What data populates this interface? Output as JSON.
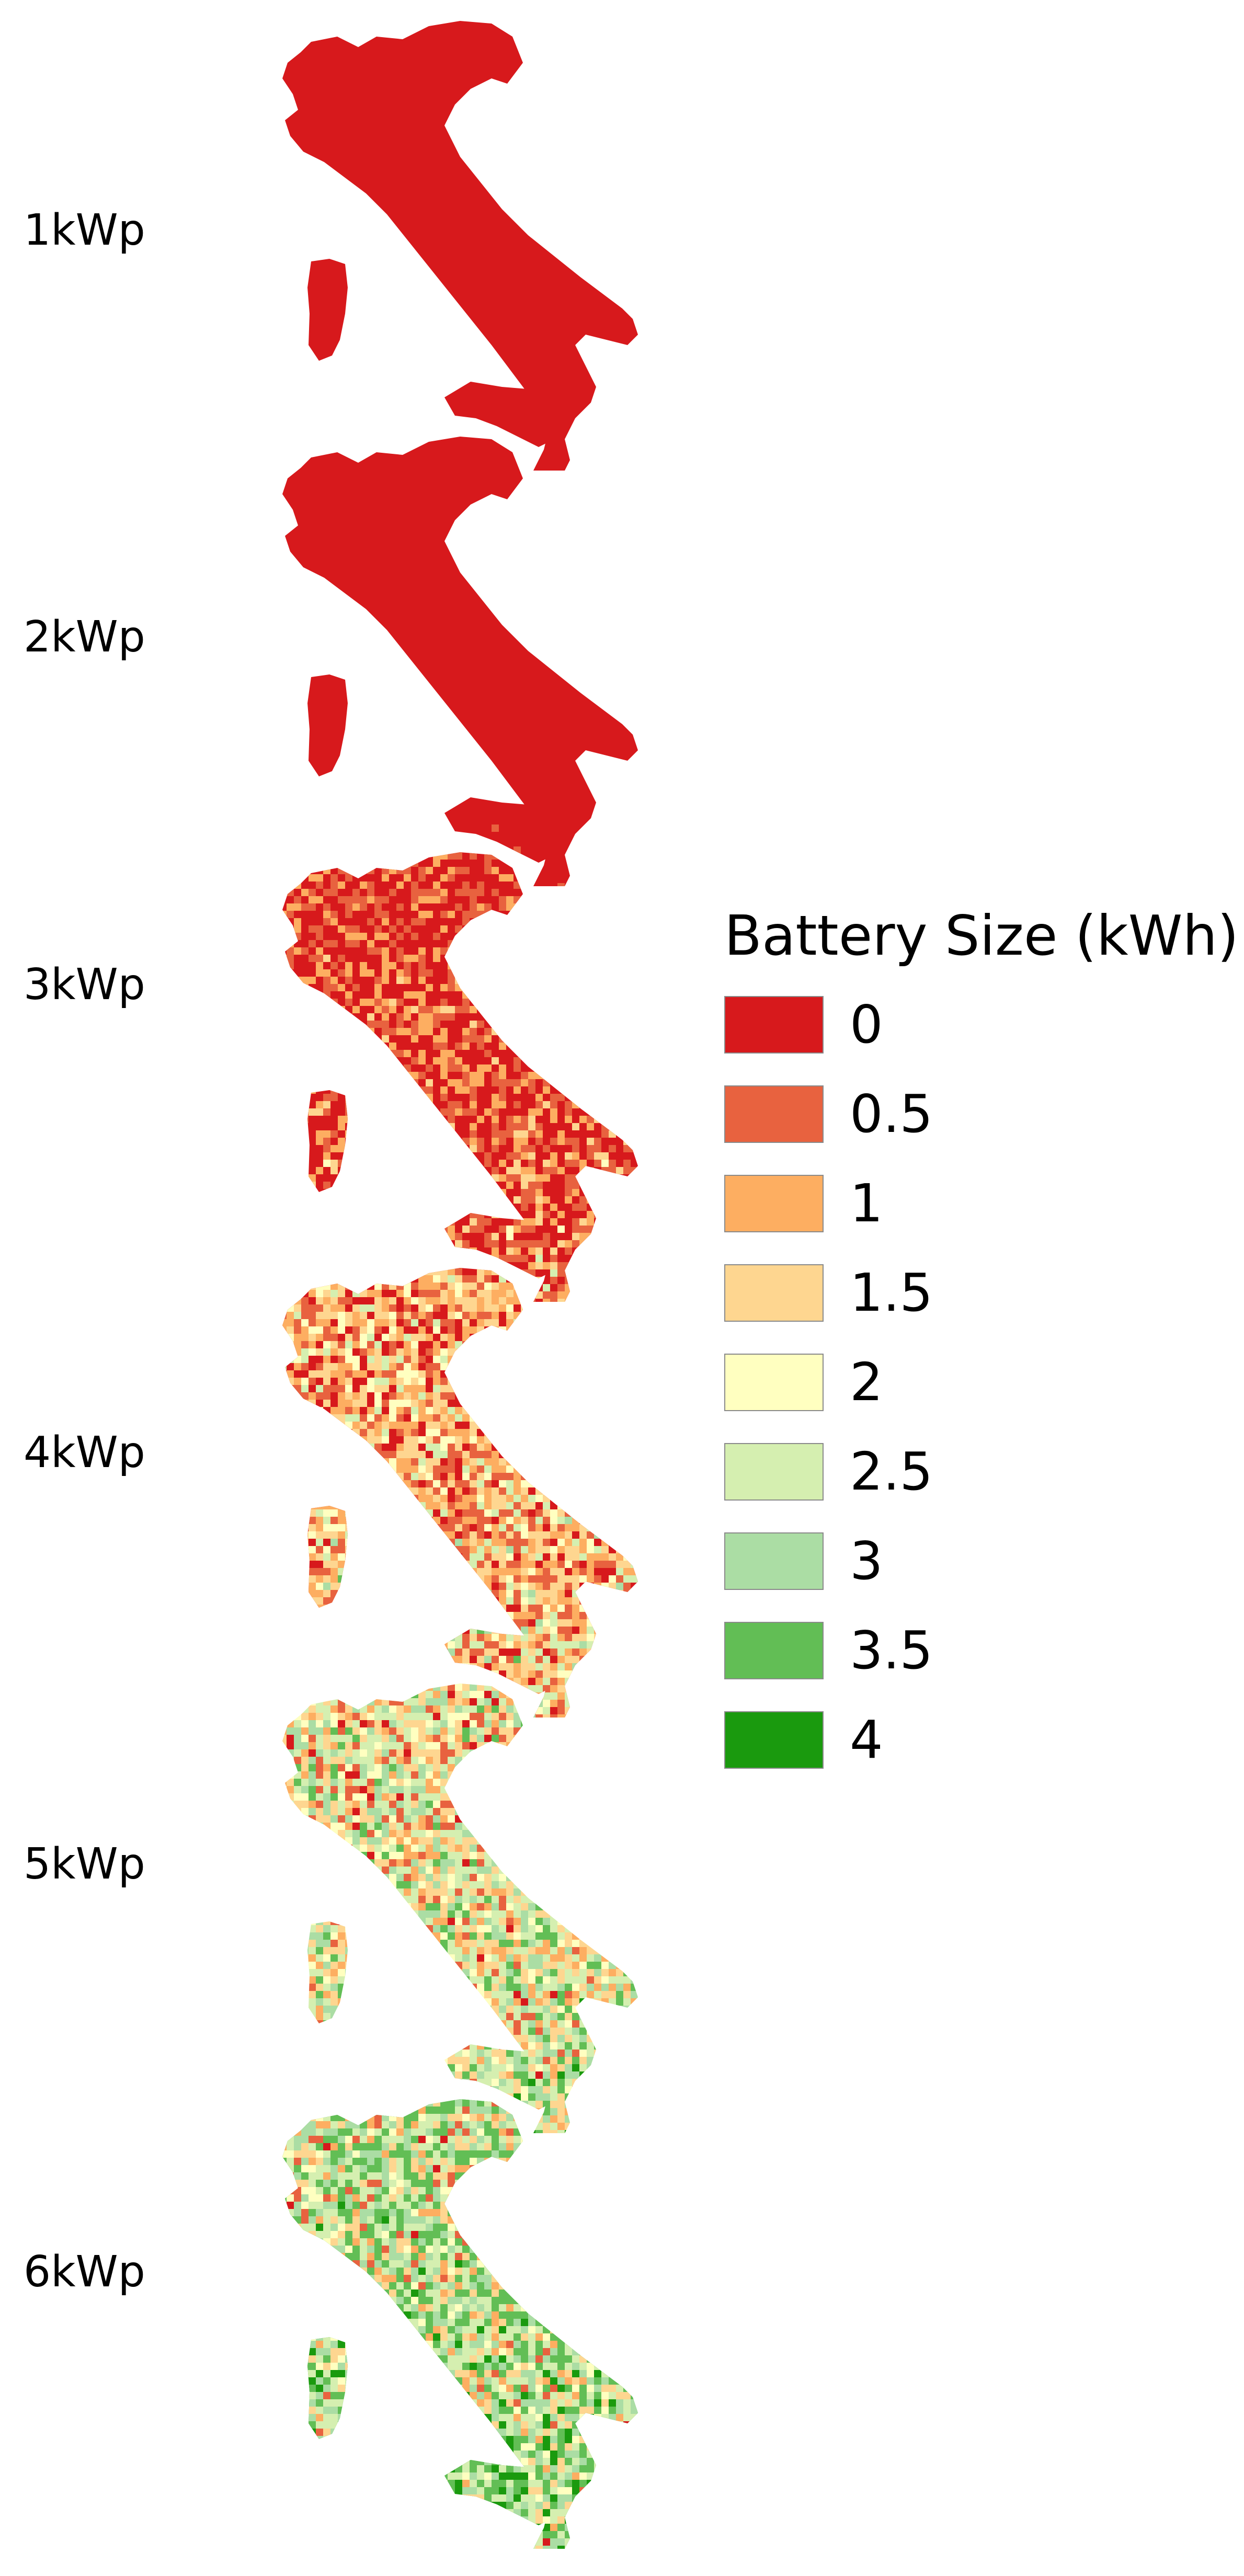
{
  "panels": [
    {
      "label": "1kWp",
      "mix": [
        1.0,
        0.0,
        0.0,
        0.0,
        0.0,
        0.0,
        0.0,
        0.0,
        0.0
      ]
    },
    {
      "label": "2kWp",
      "mix": [
        0.93,
        0.04,
        0.02,
        0.01,
        0.0,
        0.0,
        0.0,
        0.0,
        0.0
      ]
    },
    {
      "label": "3kWp",
      "mix": [
        0.45,
        0.2,
        0.14,
        0.1,
        0.04,
        0.04,
        0.02,
        0.01,
        0.0
      ]
    },
    {
      "label": "4kWp",
      "mix": [
        0.18,
        0.14,
        0.16,
        0.17,
        0.09,
        0.11,
        0.07,
        0.05,
        0.03
      ]
    },
    {
      "label": "5kWp",
      "mix": [
        0.08,
        0.08,
        0.1,
        0.13,
        0.08,
        0.16,
        0.13,
        0.13,
        0.11
      ]
    },
    {
      "label": "6kWp",
      "mix": [
        0.05,
        0.05,
        0.07,
        0.08,
        0.06,
        0.16,
        0.15,
        0.18,
        0.2
      ]
    }
  ],
  "legend": {
    "title": "Battery Size (kWh)",
    "items": [
      {
        "value": "0",
        "color": "#d7191c"
      },
      {
        "value": "0.5",
        "color": "#e8623f"
      },
      {
        "value": "1",
        "color": "#fdae61"
      },
      {
        "value": "1.5",
        "color": "#fed690"
      },
      {
        "value": "2",
        "color": "#ffffc0"
      },
      {
        "value": "2.5",
        "color": "#d5efb0"
      },
      {
        "value": "3",
        "color": "#abdda4"
      },
      {
        "value": "3.5",
        "color": "#62be55"
      },
      {
        "value": "4",
        "color": "#1a9a0e"
      }
    ]
  }
}
